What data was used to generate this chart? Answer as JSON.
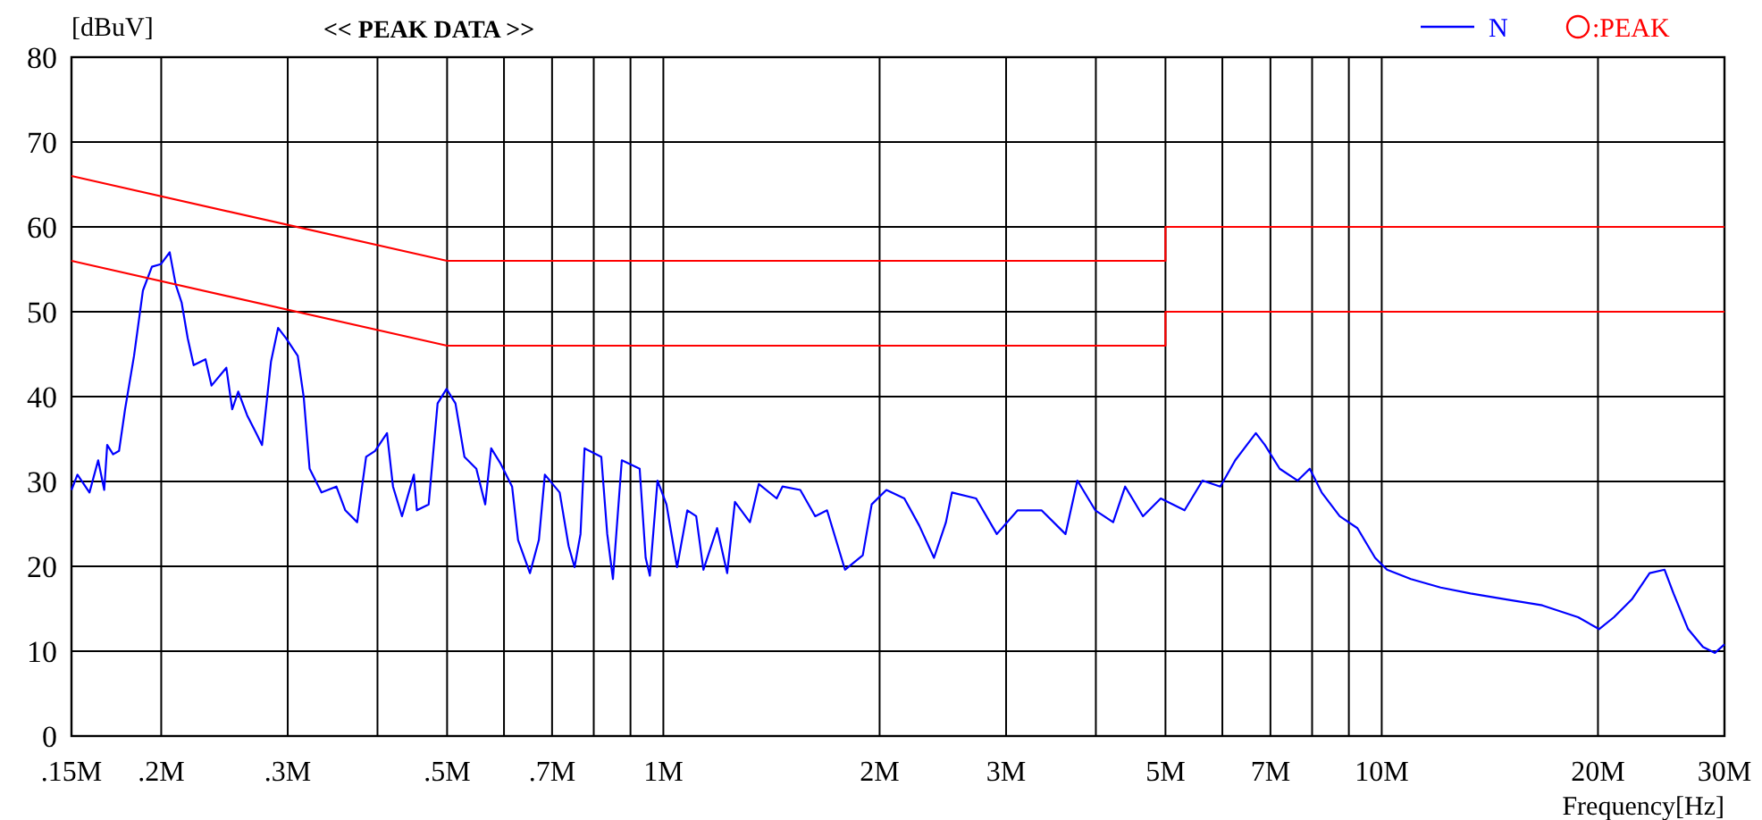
{
  "chart_data": {
    "type": "line",
    "title": "<< PEAK DATA >>",
    "ylabel": "[dBuV]",
    "xlabel": "Frequency[Hz]",
    "log": "x",
    "grid": true,
    "legend": "top right",
    "xlim": [
      0.15,
      30
    ],
    "ylim": [
      0,
      80
    ],
    "xticks": [
      {
        "value": 0.15,
        "label": ".15M"
      },
      {
        "value": 0.2,
        "label": ".2M"
      },
      {
        "value": 0.3,
        "label": ".3M"
      },
      {
        "value": 0.4,
        "label": null
      },
      {
        "value": 0.5,
        "label": ".5M"
      },
      {
        "value": 0.6,
        "label": null
      },
      {
        "value": 0.7,
        "label": ".7M"
      },
      {
        "value": 0.8,
        "label": null
      },
      {
        "value": 0.9,
        "label": null
      },
      {
        "value": 1,
        "label": "1M"
      },
      {
        "value": 2,
        "label": "2M"
      },
      {
        "value": 3,
        "label": "3M"
      },
      {
        "value": 4,
        "label": null
      },
      {
        "value": 5,
        "label": "5M"
      },
      {
        "value": 6,
        "label": null
      },
      {
        "value": 7,
        "label": "7M"
      },
      {
        "value": 8,
        "label": null
      },
      {
        "value": 9,
        "label": null
      },
      {
        "value": 10,
        "label": "10M"
      },
      {
        "value": 20,
        "label": "20M"
      },
      {
        "value": 30,
        "label": "30M"
      }
    ],
    "yticks": [
      0,
      10,
      20,
      30,
      40,
      50,
      60,
      70,
      80
    ],
    "series": [
      {
        "name": "N",
        "color": "#0000ff",
        "x": [
          0.15,
          0.1529,
          0.1589,
          0.1634,
          0.1666,
          0.1682,
          0.1714,
          0.1747,
          0.1781,
          0.1833,
          0.1886,
          0.1941,
          0.1997,
          0.2055,
          0.2095,
          0.2135,
          0.2177,
          0.2219,
          0.2305,
          0.235,
          0.2464,
          0.2511,
          0.256,
          0.2634,
          0.2711,
          0.2763,
          0.2843,
          0.2909,
          0.2982,
          0.3098,
          0.3158,
          0.3218,
          0.3343,
          0.3506,
          0.3608,
          0.3748,
          0.3857,
          0.3969,
          0.4124,
          0.4204,
          0.4327,
          0.4495,
          0.4538,
          0.4713,
          0.485,
          0.4991,
          0.5136,
          0.5286,
          0.5491,
          0.565,
          0.5759,
          0.5926,
          0.6158,
          0.6277,
          0.6521,
          0.671,
          0.684,
          0.7173,
          0.7381,
          0.7523,
          0.7668,
          0.7768,
          0.8196,
          0.8354,
          0.8508,
          0.8753,
          0.9269,
          0.9449,
          0.9576,
          0.9815,
          1.01,
          1.045,
          1.08,
          1.111,
          1.137,
          1.188,
          1.227,
          1.258,
          1.32,
          1.358,
          1.438,
          1.465,
          1.551,
          1.627,
          1.69,
          1.79,
          1.895,
          1.95,
          2.044,
          2.165,
          2.271,
          2.381,
          2.474,
          2.522,
          2.725,
          2.912,
          3.113,
          3.361,
          3.629,
          3.77,
          3.993,
          4.228,
          4.394,
          4.652,
          4.925,
          5.316,
          5.63,
          5.961,
          6.253,
          6.68,
          6.876,
          7.21,
          7.64,
          7.94,
          8.25,
          8.74,
          9.25,
          9.79,
          10.17,
          10.98,
          12.08,
          13.29,
          14.92,
          16.73,
          18.77,
          20.07,
          21.05,
          22.29,
          23.6,
          24.76,
          25.48,
          26.7,
          28,
          29.1,
          30
        ],
        "values": [
          29,
          30.8,
          28.7,
          32.5,
          29,
          34.3,
          33.2,
          33.6,
          38.5,
          44.8,
          52.5,
          55.3,
          55.6,
          57,
          53.2,
          51.1,
          46.9,
          43.7,
          44.4,
          41.3,
          43.4,
          38.5,
          40.6,
          37.8,
          35.7,
          34.3,
          44.1,
          48.1,
          46.9,
          44.8,
          39.9,
          31.5,
          28.7,
          29.4,
          26.6,
          25.2,
          32.9,
          33.6,
          35.7,
          29.4,
          25.9,
          30.8,
          26.6,
          27.3,
          39.2,
          40.9,
          39.2,
          32.9,
          31.5,
          27.3,
          33.9,
          32.2,
          29.4,
          23.1,
          19.2,
          23.1,
          30.8,
          28.7,
          22.4,
          19.9,
          23.8,
          33.9,
          32.9,
          23.8,
          18.5,
          32.5,
          31.5,
          21,
          18.9,
          30.1,
          27.3,
          19.9,
          26.6,
          25.9,
          19.6,
          24.5,
          19.2,
          27.6,
          25.2,
          29.7,
          28,
          29.4,
          29,
          25.9,
          26.6,
          19.6,
          21.3,
          27.3,
          29,
          28,
          24.8,
          21,
          25.2,
          28.7,
          28,
          23.8,
          26.6,
          26.6,
          23.8,
          30.1,
          26.6,
          25.2,
          29.4,
          25.9,
          28,
          26.6,
          30.1,
          29.4,
          32.5,
          35.7,
          34.3,
          31.5,
          30.1,
          31.5,
          28.7,
          25.9,
          24.5,
          21,
          19.6,
          18.5,
          17.5,
          16.8,
          16.1,
          15.4,
          14,
          12.6,
          14,
          16.1,
          19.2,
          19.6,
          16.8,
          12.6,
          10.5,
          9.8,
          10.8
        ]
      },
      {
        "color": "#ff0000",
        "x": [
          0.15,
          0.5,
          5,
          5,
          30
        ],
        "values": [
          66,
          56,
          56,
          60,
          60
        ]
      },
      {
        "color": "#ff0000",
        "x": [
          0.15,
          0.5,
          5,
          5,
          30
        ],
        "values": [
          56,
          46,
          46,
          50,
          50
        ]
      },
      {
        "name": ":PEAK",
        "type": "scatter",
        "marker": "circle",
        "color": "#ff0000"
      }
    ]
  }
}
